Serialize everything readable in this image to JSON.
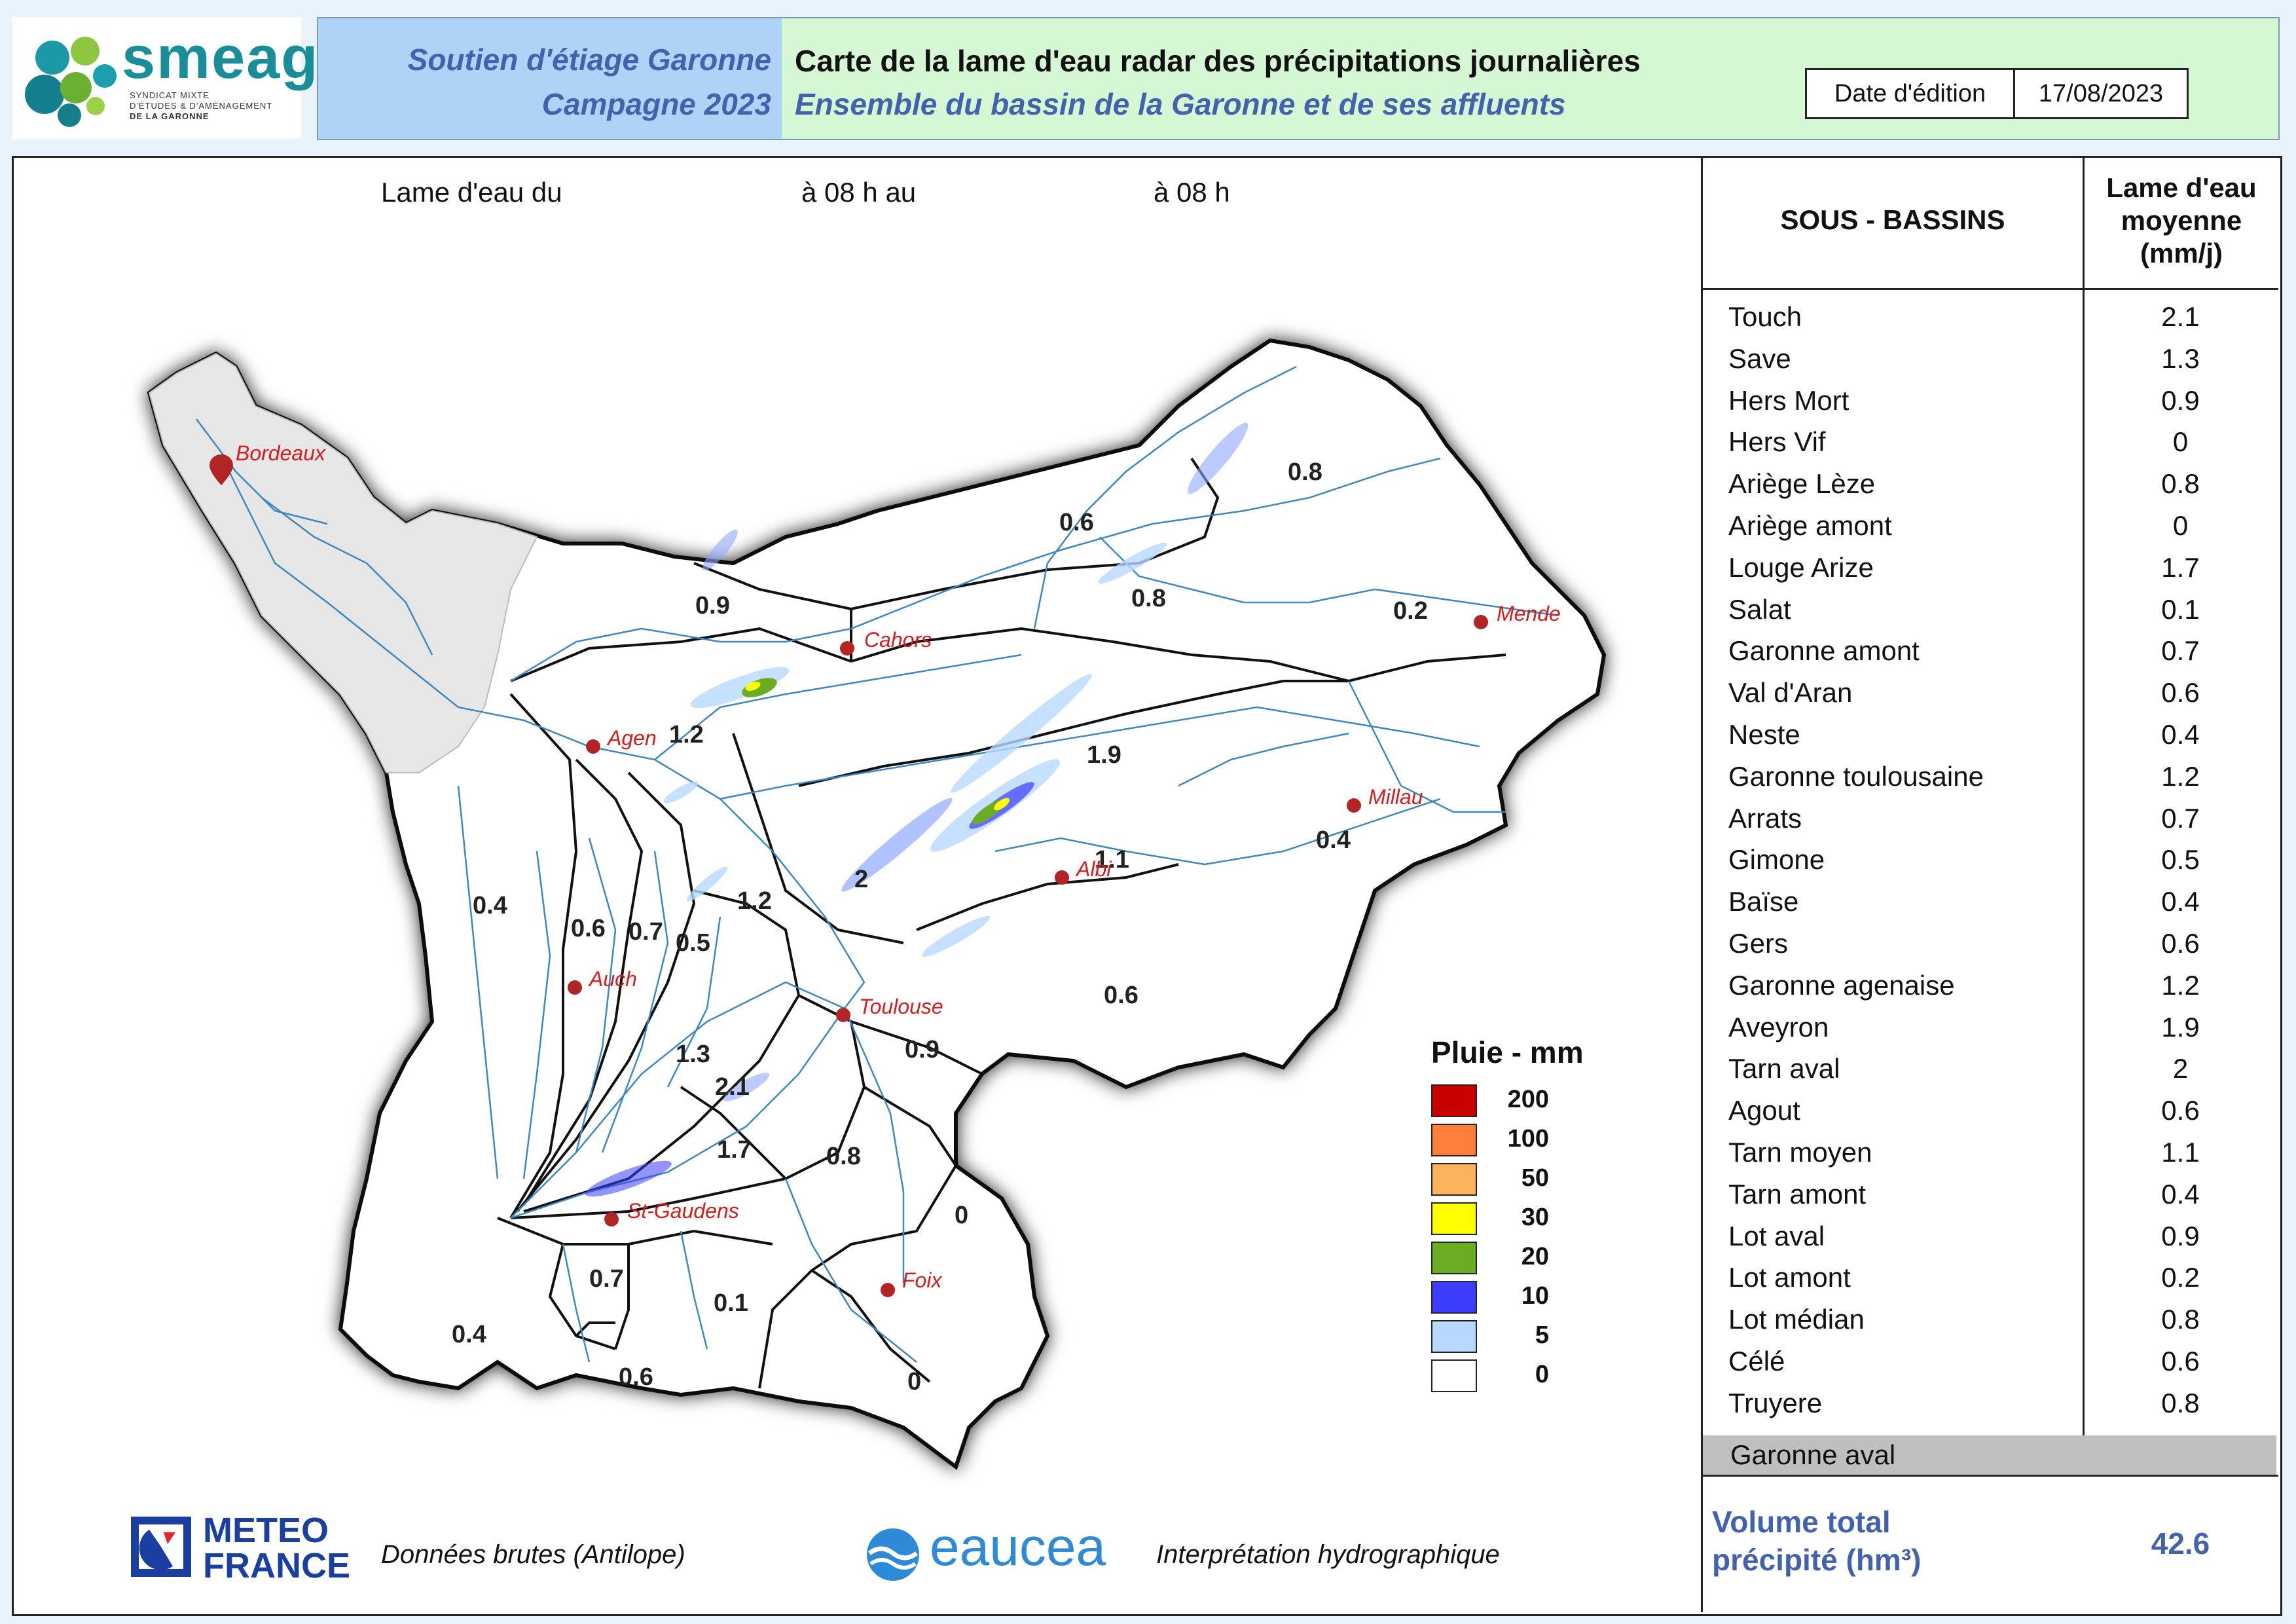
{
  "header": {
    "logo_name": "smeag",
    "logo_subtitle": [
      "SYNDICAT MIXTE",
      "D'ÉTUDES & D'AMÉNAGEMENT",
      "DE LA GARONNE"
    ],
    "left_line1": "Soutien d'étiage Garonne",
    "left_line2": "Campagne 2023",
    "title": "Carte de la lame d'eau radar des précipitations journalières",
    "subtitle": "Ensemble du bassin de la Garonne et de ses affluents",
    "date_label": "Date d'édition",
    "date_value": "17/08/2023"
  },
  "period": {
    "prefix": "Lame d'eau du",
    "middle": "à 08 h au",
    "suffix": "à 08 h"
  },
  "map": {
    "cities": [
      "Bordeaux",
      "Cahors",
      "Mende",
      "Agen",
      "Millau",
      "Albi",
      "Auch",
      "Toulouse",
      "St-Gaudens",
      "Foix"
    ],
    "basin_values": [
      "0.8",
      "0.6",
      "0.9",
      "0.8",
      "0.2",
      "1.2",
      "1.9",
      "0.4",
      "1.1",
      "2",
      "0.4",
      "0.6",
      "0.7",
      "0.5",
      "1.2",
      "0.6",
      "0.9",
      "1.3",
      "2.1",
      "1.7",
      "0.8",
      "0",
      "0.7",
      "0.1",
      "0.4",
      "0.6",
      "0"
    ],
    "colors": {
      "basin_fill": "#ffffff",
      "outside_fill": "#e6e6e6",
      "river": "#3b88c2",
      "city_marker": "#b32525",
      "city_label": "#d61c1c"
    }
  },
  "legend": {
    "title": "Pluie - mm",
    "items": [
      {
        "label": "200",
        "color": "#c80000"
      },
      {
        "label": "100",
        "color": "#ff7f3a"
      },
      {
        "label": "50",
        "color": "#fbb45c"
      },
      {
        "label": "30",
        "color": "#ffff00"
      },
      {
        "label": "20",
        "color": "#6aad23"
      },
      {
        "label": "10",
        "color": "#3c3cff"
      },
      {
        "label": "5",
        "color": "#b8d8ff"
      },
      {
        "label": "0",
        "color": "#ffffff"
      }
    ]
  },
  "table": {
    "col1_header": "SOUS - BASSINS",
    "col2_header": [
      "Lame d'eau",
      "moyenne",
      "(mm/j)"
    ],
    "rows": [
      {
        "name": "Touch",
        "value": "2.1"
      },
      {
        "name": "Save",
        "value": "1.3"
      },
      {
        "name": "Hers Mort",
        "value": "0.9"
      },
      {
        "name": "Hers Vif",
        "value": "0"
      },
      {
        "name": "Ariège Lèze",
        "value": "0.8"
      },
      {
        "name": "Ariège amont",
        "value": "0"
      },
      {
        "name": "Louge Arize",
        "value": "1.7"
      },
      {
        "name": "Salat",
        "value": "0.1"
      },
      {
        "name": "Garonne amont",
        "value": "0.7"
      },
      {
        "name": "Val d'Aran",
        "value": "0.6"
      },
      {
        "name": "Neste",
        "value": "0.4"
      },
      {
        "name": "Garonne toulousaine",
        "value": "1.2"
      },
      {
        "name": "Arrats",
        "value": "0.7"
      },
      {
        "name": "Gimone",
        "value": "0.5"
      },
      {
        "name": "Baïse",
        "value": "0.4"
      },
      {
        "name": "Gers",
        "value": "0.6"
      },
      {
        "name": "Garonne agenaise",
        "value": "1.2"
      },
      {
        "name": "Aveyron",
        "value": "1.9"
      },
      {
        "name": "Tarn aval",
        "value": "2"
      },
      {
        "name": "Agout",
        "value": "0.6"
      },
      {
        "name": "Tarn moyen",
        "value": "1.1"
      },
      {
        "name": "Tarn amont",
        "value": "0.4"
      },
      {
        "name": "Lot aval",
        "value": "0.9"
      },
      {
        "name": "Lot amont",
        "value": "0.2"
      },
      {
        "name": "Lot médian",
        "value": "0.8"
      },
      {
        "name": "Célé",
        "value": "0.6"
      },
      {
        "name": "Truyere",
        "value": "0.8"
      }
    ],
    "extra_row": "Garonne aval",
    "volume_label": [
      "Volume total",
      "précipité (hm³)"
    ],
    "volume_value": "42.6"
  },
  "footer": {
    "meteo_name": [
      "METEO",
      "FRANCE"
    ],
    "meteo_caption": "Données brutes (Antilope)",
    "eaucea_name": "eaucea",
    "eaucea_caption": "Interprétation hydrographique"
  }
}
